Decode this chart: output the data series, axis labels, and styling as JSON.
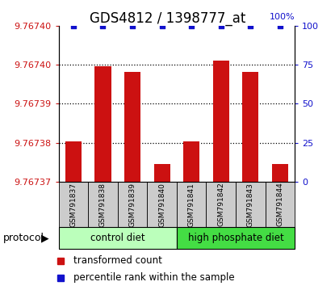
{
  "title": "GDS4812 / 1398777_at",
  "samples": [
    "GSM791837",
    "GSM791838",
    "GSM791839",
    "GSM791840",
    "GSM791841",
    "GSM791842",
    "GSM791843",
    "GSM791844"
  ],
  "transformed_counts": [
    9.767382,
    9.767395,
    9.767394,
    9.767378,
    9.767382,
    9.767396,
    9.767394,
    9.767378
  ],
  "percentile_ranks": [
    100,
    100,
    100,
    100,
    100,
    100,
    100,
    100
  ],
  "bar_color": "#cc1111",
  "scatter_color": "#1111cc",
  "ylim_left": [
    9.767375,
    9.767402
  ],
  "ylim_right": [
    0,
    133
  ],
  "yticks_right": [
    0,
    25,
    50,
    75,
    100
  ],
  "bar_width": 0.55,
  "plot_bg_color": "#ffffff",
  "title_fontsize": 12,
  "tick_fontsize": 8,
  "legend_fontsize": 8.5,
  "group_light_green": "#bbffbb",
  "group_dark_green": "#44dd44",
  "group_border": "#000000",
  "sample_box_color": "#cccccc",
  "right_tick_color": "#1111cc"
}
